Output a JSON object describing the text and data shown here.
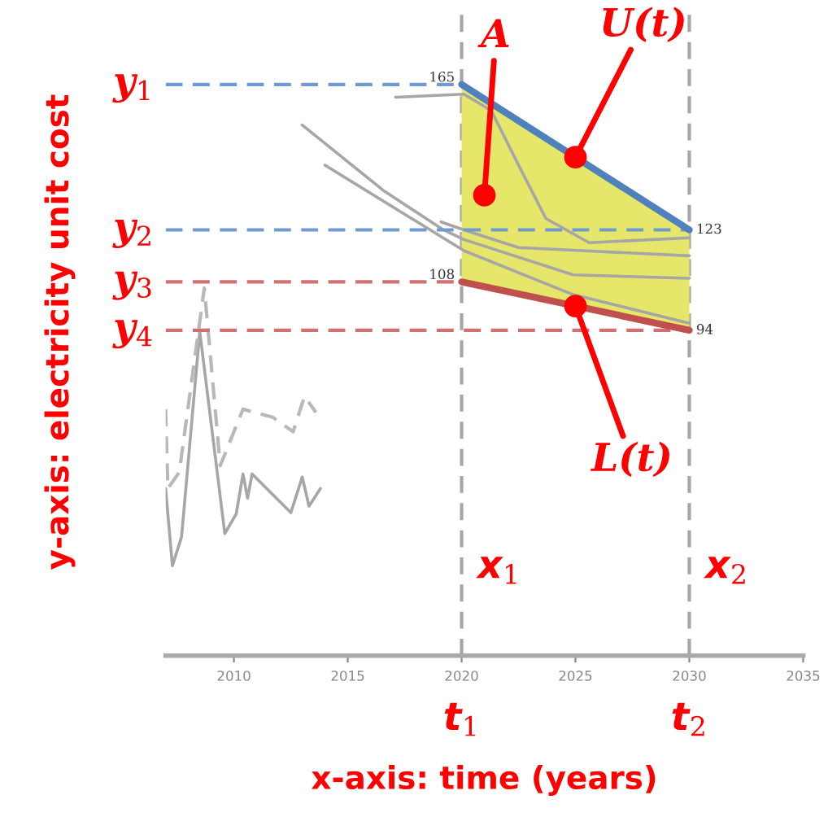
{
  "chart_data": {
    "type": "line",
    "xlabel": "x-axis: time (years)",
    "ylabel": "y-axis: electricity unit cost",
    "xlim": [
      2007,
      2035
    ],
    "xticks": [
      2010,
      2015,
      2020,
      2025,
      2030,
      2035
    ],
    "ylim": [
      0,
      187
    ],
    "tick_labels": "x",
    "grid": false,
    "legend": false,
    "series": [
      {
        "color": "#a6a6a6",
        "x": [
          2017.1,
          2020.1,
          2021.3,
          2022.5,
          2023.7,
          2025.6,
          2030
        ],
        "values": [
          161.3,
          162.2,
          157.5,
          141.7,
          126.3,
          119.3,
          120.7
        ]
      },
      {
        "color": "#a6a6a6",
        "x": [
          2013.0,
          2016.6,
          2019.2,
          2020.1,
          2024.9,
          2030
        ],
        "values": [
          153.3,
          134.2,
          123,
          120.2,
          110,
          109
        ]
      },
      {
        "color": "#a6a6a6",
        "x": [
          2014.0,
          2017.8,
          2020.1,
          2024.9,
          2030
        ],
        "values": [
          141.7,
          126.3,
          117,
          104.3,
          96
        ]
      },
      {
        "color": "#a6a6a6",
        "x": [
          2019.1,
          2020.1,
          2022.5,
          2030
        ],
        "values": [
          125.3,
          123,
          117.9,
          115.5
        ]
      },
      {
        "color": "#a6a6a6",
        "x": [
          2007.0,
          2007.3,
          2007.7,
          2008.5,
          2009.6,
          2010.1,
          2010.4,
          2010.6,
          2010.8,
          2012.5,
          2013.0,
          2013.3,
          2013.8
        ],
        "values": [
          48.3,
          26,
          34.3,
          93.6,
          35.3,
          40.9,
          52.5,
          45.5,
          52.5,
          41.3,
          51.6,
          43.2,
          48.3
        ]
      },
      {
        "color": "#b8b8b8",
        "line_style": "dashed",
        "x": [
          2007.0,
          2007.1,
          2007.6,
          2008.7,
          2009.4,
          2010.4,
          2011.7,
          2012.6,
          2013.1,
          2013.6
        ],
        "values": [
          71.2,
          48.3,
          53,
          106.2,
          54.9,
          71.2,
          68.9,
          64.7,
          74.9,
          70.3
        ]
      },
      {
        "name": "y$_{1}$",
        "color": "#6f9bd1",
        "line_style": "dashed",
        "x": [
          2007,
          2020
        ],
        "values": [
          165,
          165
        ]
      },
      {
        "name": "y$_{2}$",
        "color": "#6f9bd1",
        "line_style": "dashed",
        "x": [
          2007,
          2030
        ],
        "values": [
          123,
          123
        ]
      },
      {
        "name": "y$_{3}$",
        "color": "#d07070",
        "line_style": "dashed",
        "x": [
          2007,
          2020
        ],
        "values": [
          108,
          108
        ]
      },
      {
        "name": "y$_{4}$",
        "color": "#d07070",
        "line_style": "dashed",
        "x": [
          2007,
          2030
        ],
        "values": [
          94,
          94
        ]
      },
      {
        "name": "U(t)",
        "color": "#4f81bd",
        "x": [
          2020,
          2030
        ],
        "values": [
          165,
          123
        ],
        "lower": [
          108,
          94
        ],
        "upper": [
          165,
          123
        ],
        "value_labels": [
          "165",
          "123"
        ]
      },
      {
        "name": "L(t)",
        "color": "#c0504d",
        "x": [
          2020,
          2030
        ],
        "values": [
          108,
          94
        ],
        "value_labels": [
          "108",
          "94"
        ]
      }
    ],
    "ref_lines": [
      {
        "axis": "x",
        "value": 2020,
        "label": "x$_{1}$",
        "color": "#a6a6a6",
        "line_style": "dashed"
      },
      {
        "axis": "x",
        "value": 2030,
        "label": "x$_{2}$",
        "color": "#a6a6a6",
        "line_style": "dashed"
      }
    ],
    "annotations": [
      {
        "text": "A",
        "x": 2021,
        "y": 133
      },
      {
        "text": "t$_{1}$",
        "x": 2020
      },
      {
        "text": "t$_{2}$",
        "x": 2030
      }
    ]
  }
}
